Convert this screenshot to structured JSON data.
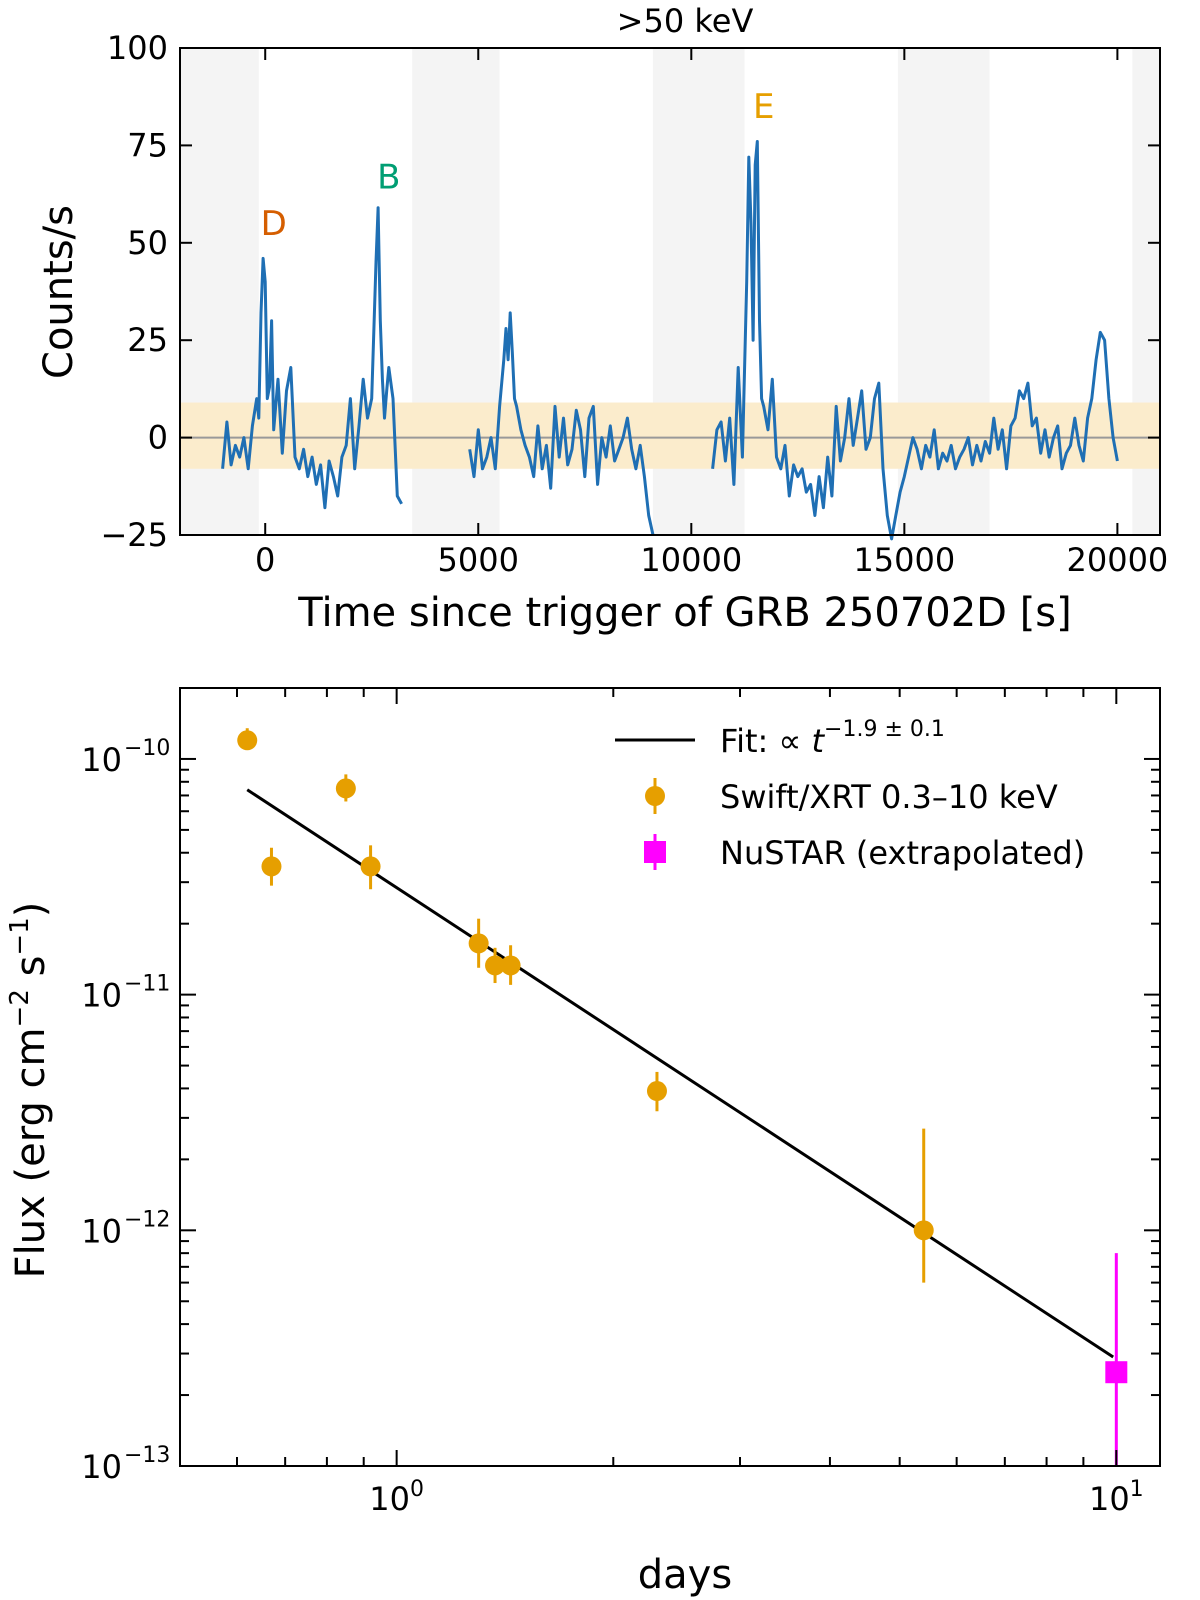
{
  "chart_data": [
    {
      "type": "line",
      "title": ">50 keV",
      "xlabel": "Time since trigger of GRB 250702D [s]",
      "ylabel": "Counts/s",
      "xlim": [
        -2000,
        21000
      ],
      "ylim": [
        -25,
        100
      ],
      "xticks": [
        0,
        5000,
        10000,
        15000,
        20000
      ],
      "xtick_labels": [
        "0",
        "5000",
        "10000",
        "15000",
        "20000"
      ],
      "yticks": [
        -25,
        0,
        25,
        50,
        75,
        100
      ],
      "ytick_labels": [
        "−25",
        "0",
        "25",
        "50",
        "75",
        "100"
      ],
      "zero_line": 0,
      "band": {
        "low": -8,
        "high": 9,
        "color": "#fbeccc"
      },
      "gray_intervals": [
        [
          -2000,
          -150
        ],
        [
          3450,
          5500
        ],
        [
          9100,
          11250
        ],
        [
          14850,
          17000
        ],
        [
          20350,
          21000
        ]
      ],
      "gray_color": "#f4f4f4",
      "line_color": "#1f6fb4",
      "peak_labels": [
        {
          "text": "D",
          "x": 200,
          "y": 52,
          "color": "#d55e00"
        },
        {
          "text": "B",
          "x": 2900,
          "y": 64,
          "color": "#009e73"
        },
        {
          "text": "E",
          "x": 11700,
          "y": 82,
          "color": "#e69f00"
        }
      ],
      "segments": [
        {
          "x": [
            -1000,
            -900,
            -800,
            -700,
            -600,
            -500,
            -400,
            -300,
            -200,
            -150,
            -100,
            -50,
            0,
            50,
            100,
            150,
            200,
            300,
            400,
            500,
            600,
            700,
            800,
            900,
            1000,
            1100,
            1200,
            1300,
            1400,
            1500,
            1600,
            1700,
            1800,
            1900,
            2000,
            2100,
            2200,
            2300,
            2400,
            2500,
            2600,
            2650,
            2700,
            2750,
            2800,
            2850,
            2900,
            3000,
            3100,
            3200
          ],
          "y": [
            -8,
            4,
            -7,
            -2,
            -5,
            0,
            -8,
            3,
            10,
            5,
            32,
            46,
            40,
            10,
            13,
            30,
            2,
            15,
            -4,
            12,
            18,
            -5,
            -8,
            -3,
            -10,
            -5,
            -12,
            -7,
            -18,
            -6,
            -10,
            -15,
            -5,
            -2,
            10,
            -8,
            3,
            15,
            5,
            10,
            45,
            59,
            30,
            15,
            5,
            12,
            18,
            10,
            -15,
            -17
          ]
        },
        {
          "x": [
            4800,
            4900,
            5000,
            5100,
            5200,
            5300,
            5400,
            5500,
            5600,
            5650,
            5700,
            5750,
            5800,
            5850,
            5900,
            6000,
            6100,
            6200,
            6300,
            6400,
            6500,
            6600,
            6700,
            6800,
            6900,
            7000,
            7100,
            7200,
            7300,
            7400,
            7500,
            7600,
            7700,
            7800,
            7900,
            8000,
            8100,
            8200,
            8300,
            8400,
            8500,
            8600,
            8700,
            8800,
            8900,
            9000,
            9100
          ],
          "y": [
            -3,
            -10,
            2,
            -8,
            -5,
            0,
            -8,
            8,
            20,
            28,
            20,
            32,
            22,
            10,
            8,
            2,
            -2,
            -5,
            -10,
            3,
            -8,
            -2,
            -13,
            8,
            -5,
            5,
            -7,
            -3,
            7,
            2,
            -10,
            5,
            8,
            -12,
            0,
            -5,
            3,
            -6,
            -3,
            0,
            5,
            -3,
            -8,
            -2,
            -10,
            -20,
            -25
          ]
        },
        {
          "x": [
            10500,
            10600,
            10700,
            10800,
            10900,
            11000,
            11100,
            11200,
            11300,
            11350,
            11400,
            11450,
            11500,
            11550,
            11600,
            11650,
            11700,
            11800,
            11900,
            12000,
            12100,
            12200,
            12300,
            12400,
            12500,
            12600,
            12700,
            12800,
            12900,
            13000,
            13100,
            13200,
            13300,
            13400,
            13500,
            13600,
            13700,
            13800,
            13900,
            14000,
            14100,
            14200,
            14300,
            14400,
            14500,
            14600,
            14700,
            14800,
            14900,
            15000,
            15100,
            15200,
            15300,
            15400,
            15500,
            15600,
            15700,
            15800,
            15900,
            16000,
            16100,
            16200,
            16300,
            16400,
            16500,
            16600,
            16700,
            16800,
            16900,
            17000,
            17100,
            17200,
            17300,
            17400,
            17500,
            17600,
            17700,
            17800,
            17900,
            18000,
            18100,
            18200,
            18300,
            18400,
            18500,
            18600,
            18700,
            18800,
            18900,
            19000,
            19100,
            19200,
            19300,
            19400,
            19500,
            19600,
            19700,
            19800,
            19900,
            20000
          ],
          "y": [
            -8,
            2,
            4,
            -6,
            5,
            -12,
            18,
            -5,
            40,
            72,
            55,
            25,
            70,
            76,
            30,
            10,
            8,
            2,
            15,
            -5,
            -8,
            -2,
            -15,
            -7,
            -10,
            -8,
            -14,
            -12,
            -20,
            -10,
            -18,
            -5,
            -15,
            8,
            -6,
            0,
            10,
            -2,
            5,
            12,
            -3,
            0,
            10,
            14,
            -8,
            -20,
            -26,
            -20,
            -14,
            -10,
            -5,
            0,
            -3,
            -8,
            -2,
            -5,
            2,
            -8,
            -4,
            -6,
            -2,
            -8,
            -5,
            -3,
            0,
            -7,
            -2,
            -6,
            -1,
            -4,
            5,
            -3,
            2,
            -8,
            3,
            5,
            12,
            10,
            14,
            3,
            5,
            -4,
            2,
            -5,
            0,
            3,
            -8,
            -4,
            -2,
            5,
            -2,
            -6,
            5,
            10,
            20,
            27,
            25,
            10,
            0,
            -6
          ]
        }
      ]
    },
    {
      "type": "scatter",
      "xscale": "log",
      "yscale": "log",
      "xlabel": "days",
      "ylabel": "Flux (erg cm−2 s−1)",
      "xlim": [
        0.5,
        11.5
      ],
      "ylim": [
        1e-13,
        2e-10
      ],
      "xticks": [
        1,
        10
      ],
      "xtick_labels": [
        "10^0",
        "10^1"
      ],
      "yticks": [
        1e-13,
        1e-12,
        1e-11,
        1e-10
      ],
      "ytick_labels": [
        "10^−13",
        "10^−12",
        "10^−11",
        "10^−10"
      ],
      "legend_position": "top-right",
      "fit": {
        "name": "Fit: ∝ t^{−1.9 ± 0.1}",
        "label_prefix": "Fit:  ∝ ",
        "label_var": "t",
        "label_exp": "−1.9 ± 0.1",
        "x": [
          0.62,
          9.9
        ],
        "y": [
          7.4e-11,
          2.9e-13
        ],
        "color": "#000000"
      },
      "series": [
        {
          "name": "Swift/XRT 0.3–10 keV",
          "marker": "circle",
          "color": "#e69f00",
          "points": [
            {
              "x": 0.62,
              "y": 1.2e-10,
              "ylo": 1.1e-10,
              "yhi": 1.35e-10
            },
            {
              "x": 0.67,
              "y": 3.5e-11,
              "ylo": 2.9e-11,
              "yhi": 4.2e-11
            },
            {
              "x": 0.85,
              "y": 7.5e-11,
              "ylo": 6.6e-11,
              "yhi": 8.6e-11
            },
            {
              "x": 0.92,
              "y": 3.5e-11,
              "ylo": 2.8e-11,
              "yhi": 4.3e-11
            },
            {
              "x": 1.3,
              "y": 1.65e-11,
              "ylo": 1.3e-11,
              "yhi": 2.1e-11
            },
            {
              "x": 1.37,
              "y": 1.33e-11,
              "ylo": 1.12e-11,
              "yhi": 1.58e-11
            },
            {
              "x": 1.44,
              "y": 1.33e-11,
              "ylo": 1.1e-11,
              "yhi": 1.62e-11
            },
            {
              "x": 2.3,
              "y": 3.9e-12,
              "ylo": 3.2e-12,
              "yhi": 4.7e-12
            },
            {
              "x": 5.4,
              "y": 1e-12,
              "ylo": 6e-13,
              "yhi": 2.7e-12
            }
          ]
        },
        {
          "name": "NuSTAR (extrapolated)",
          "marker": "square",
          "color": "#ff00ff",
          "points": [
            {
              "x": 10.0,
              "y": 2.5e-13,
              "ylo": 1e-13,
              "yhi": 8e-13
            }
          ]
        }
      ]
    }
  ]
}
